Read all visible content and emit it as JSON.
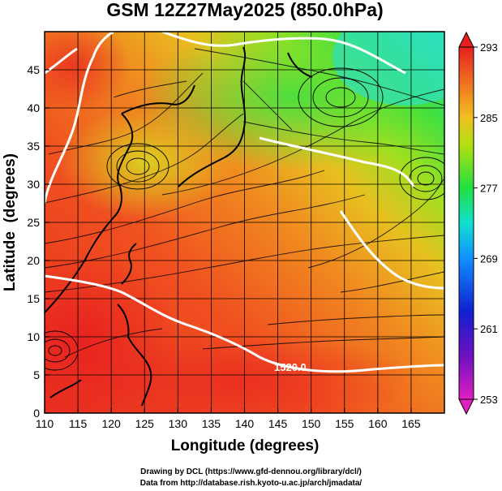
{
  "chart_data": {
    "type": "heatmap",
    "title": "GSM 12Z27May2025 (850.0hPa)",
    "xlabel": "Longitude (degrees)",
    "ylabel": "Latitude  (degrees)",
    "xlim": [
      110,
      170
    ],
    "ylim": [
      0,
      50
    ],
    "x_ticks": [
      110,
      115,
      120,
      125,
      130,
      135,
      140,
      145,
      150,
      155,
      160,
      165
    ],
    "y_ticks": [
      0,
      5,
      10,
      15,
      20,
      25,
      30,
      35,
      40,
      45
    ],
    "colorbar": {
      "range": [
        253,
        293
      ],
      "ticks": [
        253,
        261,
        269,
        277,
        285,
        293
      ],
      "colors": [
        "#e020c0",
        "#6010c0",
        "#1020d0",
        "#1090ff",
        "#10e0e0",
        "#20e060",
        "#60e010",
        "#c0e010",
        "#f0c020",
        "#f08020",
        "#f04020",
        "#e82020"
      ]
    },
    "contour_labels": [
      {
        "text": "1520.0",
        "lon": 146,
        "lat": 6
      }
    ]
  },
  "credits": {
    "line1": "Drawing by DCL (https://www.gfd-dennou.org/library/dcl/)",
    "line2": "Data from http://database.rish.kyoto-u.ac.jp/arch/jmadata/"
  }
}
